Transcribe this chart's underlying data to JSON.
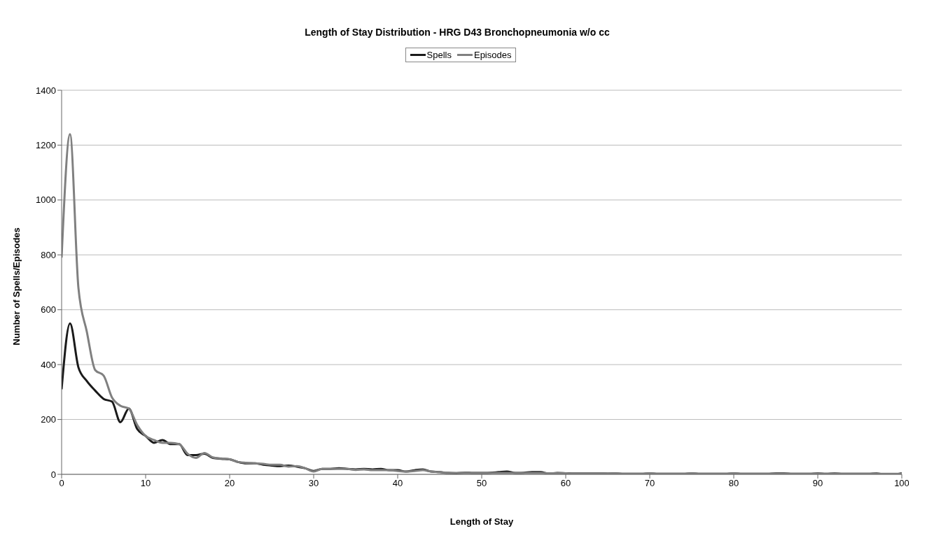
{
  "chart_data": {
    "type": "line",
    "title": "Length of Stay Distribution - HRG D43 Bronchopneumonia w/o cc",
    "xlabel": "Length of Stay",
    "ylabel": "Number of Spells/Episodes",
    "x": [
      0,
      1,
      2,
      3,
      4,
      5,
      6,
      7,
      8,
      9,
      10,
      11,
      12,
      13,
      14,
      15,
      16,
      17,
      18,
      19,
      20,
      21,
      22,
      23,
      24,
      25,
      26,
      27,
      28,
      29,
      30,
      31,
      32,
      33,
      34,
      35,
      36,
      37,
      38,
      39,
      40,
      41,
      42,
      43,
      44,
      45,
      46,
      47,
      48,
      49,
      50,
      51,
      52,
      53,
      54,
      55,
      56,
      57,
      58,
      59,
      60,
      61,
      62,
      63,
      64,
      65,
      66,
      67,
      68,
      69,
      70,
      71,
      72,
      73,
      74,
      75,
      76,
      77,
      78,
      79,
      80,
      81,
      82,
      83,
      84,
      85,
      86,
      87,
      88,
      89,
      90,
      91,
      92,
      93,
      94,
      95,
      96,
      97,
      98,
      99,
      100
    ],
    "series": [
      {
        "name": "Spells",
        "color": "#1a1a1a",
        "values": [
          310,
          550,
          390,
          340,
          305,
          275,
          265,
          190,
          240,
          165,
          140,
          115,
          125,
          110,
          110,
          70,
          70,
          75,
          60,
          57,
          55,
          45,
          40,
          40,
          35,
          32,
          30,
          32,
          28,
          22,
          12,
          20,
          20,
          22,
          20,
          18,
          20,
          18,
          20,
          15,
          15,
          10,
          15,
          18,
          10,
          8,
          5,
          4,
          6,
          5,
          5,
          6,
          8,
          10,
          5,
          6,
          8,
          8,
          3,
          5,
          4,
          3,
          3,
          3,
          3,
          4,
          3,
          2,
          2,
          2,
          3,
          2,
          2,
          2,
          2,
          3,
          2,
          2,
          2,
          2,
          3,
          2,
          2,
          2,
          2,
          3,
          3,
          2,
          2,
          2,
          3,
          2,
          3,
          2,
          2,
          2,
          2,
          3,
          0,
          0,
          4
        ]
      },
      {
        "name": "Episodes",
        "color": "#808080",
        "values": [
          790,
          1240,
          680,
          520,
          380,
          360,
          280,
          250,
          240,
          180,
          140,
          125,
          115,
          115,
          110,
          75,
          60,
          78,
          62,
          58,
          55,
          45,
          42,
          40,
          38,
          35,
          35,
          28,
          30,
          22,
          10,
          20,
          20,
          20,
          20,
          16,
          18,
          15,
          15,
          15,
          12,
          10,
          12,
          15,
          10,
          8,
          6,
          5,
          5,
          5,
          5,
          5,
          5,
          5,
          5,
          5,
          5,
          5,
          4,
          4,
          4,
          3,
          3,
          3,
          3,
          4,
          3,
          2,
          2,
          2,
          3,
          2,
          2,
          2,
          2,
          3,
          2,
          2,
          2,
          2,
          3,
          2,
          2,
          2,
          2,
          2,
          2,
          2,
          2,
          2,
          2,
          2,
          2,
          2,
          2,
          2,
          2,
          2,
          2,
          2,
          2
        ]
      }
    ],
    "xlim": [
      0,
      100
    ],
    "xticks": [
      0,
      10,
      20,
      30,
      40,
      50,
      60,
      70,
      80,
      90,
      100
    ],
    "ylim": [
      0,
      1400
    ],
    "yticks": [
      0,
      200,
      400,
      600,
      800,
      1000,
      1200,
      1400
    ],
    "grid": "y",
    "legend": "top",
    "marker": "none",
    "line_style": "solid"
  }
}
